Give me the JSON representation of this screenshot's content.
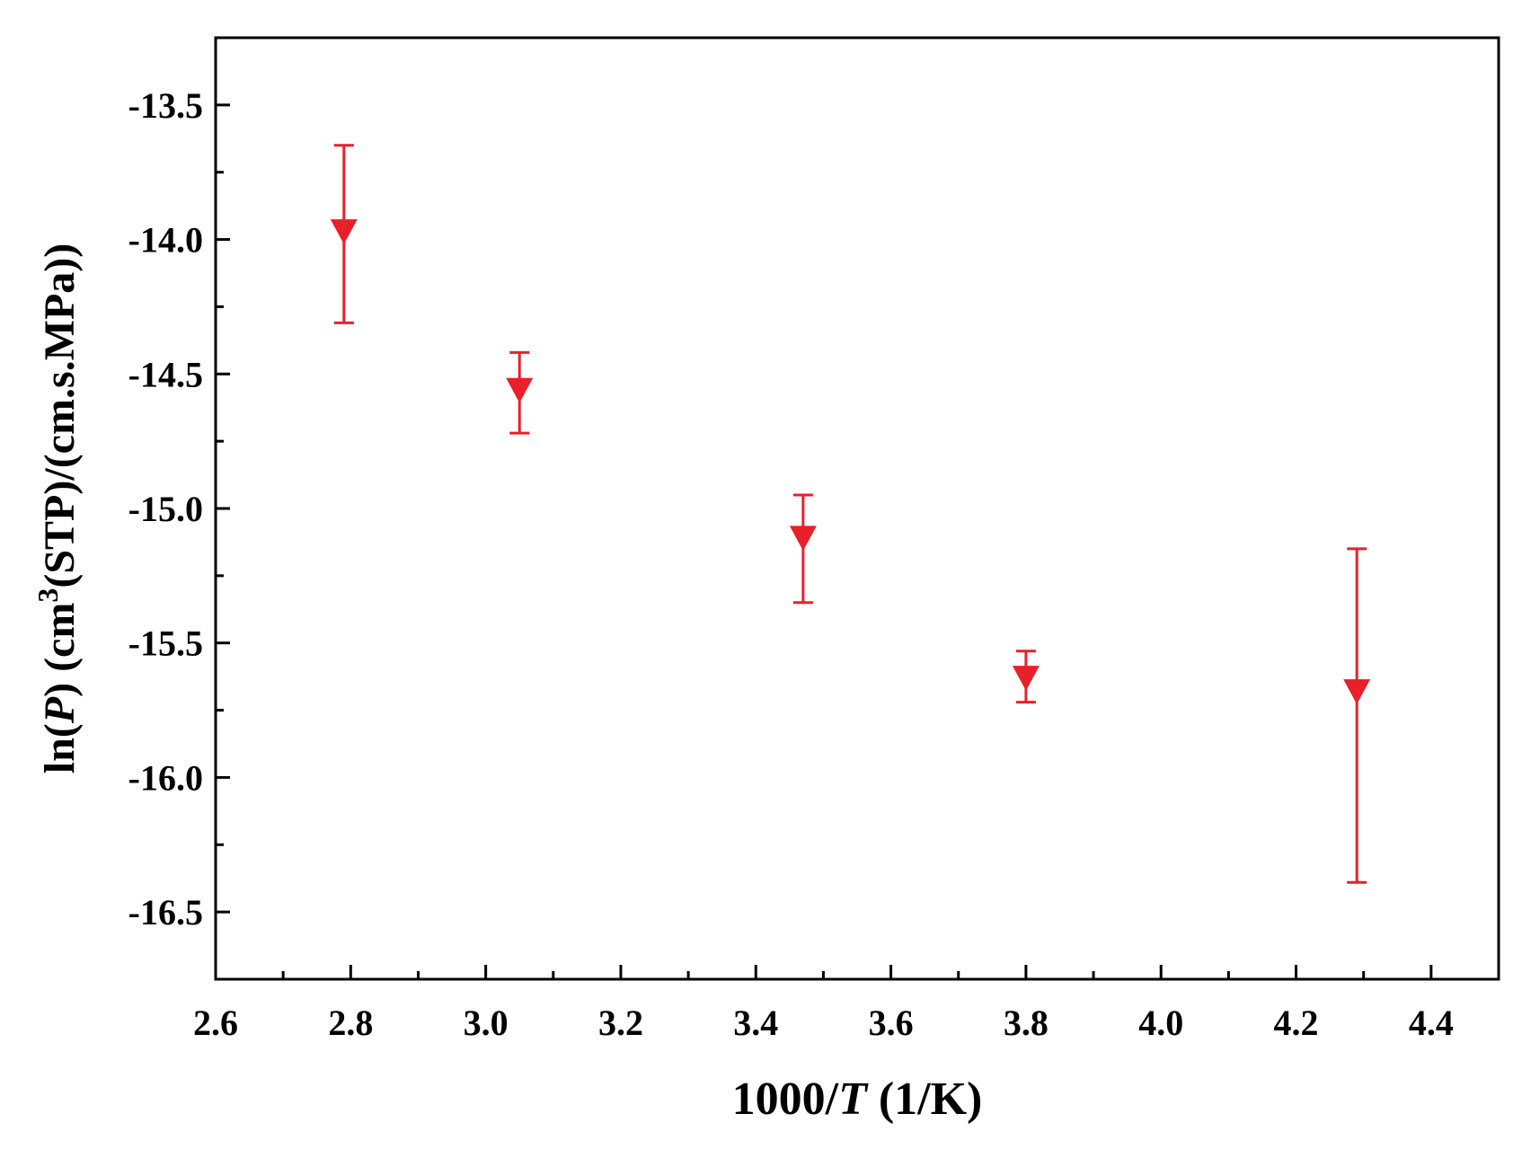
{
  "chart_data": {
    "type": "scatter",
    "title": "",
    "x_axis": {
      "label_prefix": "1000/",
      "label_var": "T",
      "label_suffix": " (1/K)",
      "range": [
        2.6,
        4.5
      ],
      "major_ticks": [
        2.6,
        2.8,
        3.0,
        3.2,
        3.4,
        3.6,
        3.8,
        4.0,
        4.2,
        4.4
      ],
      "tick_labels": [
        "2.6",
        "2.8",
        "3.0",
        "3.2",
        "3.4",
        "3.6",
        "3.8",
        "4.0",
        "4.2",
        "4.4"
      ],
      "minor_step": 0.1
    },
    "y_axis": {
      "label_prefix": "ln(",
      "label_var": "P",
      "label_mid": ") (cm",
      "label_sup": "3",
      "label_suffix": "(STP)/(cm.s.MPa))",
      "range": [
        -16.75,
        -13.25
      ],
      "major_ticks": [
        -13.5,
        -14.0,
        -14.5,
        -15.0,
        -15.5,
        -16.0,
        -16.5
      ],
      "tick_labels": [
        "-13.5",
        "-14.0",
        "-14.5",
        "-15.0",
        "-15.5",
        "-16.0",
        "-16.5"
      ],
      "minor_step": 0.25
    },
    "grid": false,
    "marker": "triangle-down",
    "color": "#e8202a",
    "points": [
      {
        "x": 2.79,
        "y": -13.97,
        "y_err_high": -13.65,
        "y_err_low": -14.31
      },
      {
        "x": 3.05,
        "y": -14.56,
        "y_err_high": -14.42,
        "y_err_low": -14.72
      },
      {
        "x": 3.47,
        "y": -15.11,
        "y_err_high": -14.95,
        "y_err_low": -15.35
      },
      {
        "x": 3.8,
        "y": -15.63,
        "y_err_high": -15.53,
        "y_err_low": -15.72
      },
      {
        "x": 4.29,
        "y": -15.68,
        "y_err_high": -15.15,
        "y_err_low": -16.39
      }
    ]
  }
}
